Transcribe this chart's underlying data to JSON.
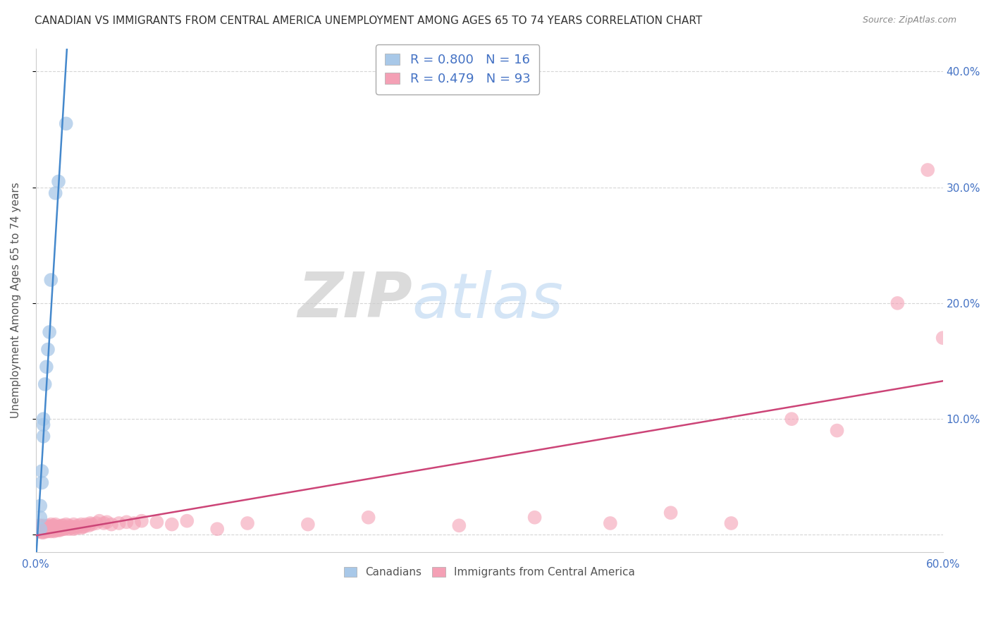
{
  "title": "CANADIAN VS IMMIGRANTS FROM CENTRAL AMERICA UNEMPLOYMENT AMONG AGES 65 TO 74 YEARS CORRELATION CHART",
  "source": "Source: ZipAtlas.com",
  "ylabel": "Unemployment Among Ages 65 to 74 years",
  "xlim": [
    0.0,
    0.6
  ],
  "ylim": [
    -0.015,
    0.42
  ],
  "yticks": [
    0.0,
    0.1,
    0.2,
    0.3,
    0.4
  ],
  "ytick_labels": [
    "",
    "10.0%",
    "20.0%",
    "30.0%",
    "40.0%"
  ],
  "xticks": [
    0.0,
    0.1,
    0.2,
    0.3,
    0.4,
    0.5,
    0.6
  ],
  "canadian_R": 0.8,
  "canadian_N": 16,
  "immigrant_R": 0.479,
  "immigrant_N": 93,
  "canadian_color": "#a8c8e8",
  "immigrant_color": "#f4a0b5",
  "canadian_line_color": "#4488cc",
  "immigrant_line_color": "#cc4477",
  "background_color": "#ffffff",
  "grid_color": "#cccccc",
  "watermark_zip": "ZIP",
  "watermark_atlas": "atlas",
  "canadian_x": [
    0.003,
    0.003,
    0.003,
    0.004,
    0.004,
    0.005,
    0.005,
    0.005,
    0.006,
    0.007,
    0.008,
    0.009,
    0.01,
    0.013,
    0.015,
    0.02
  ],
  "canadian_y": [
    0.005,
    0.015,
    0.025,
    0.045,
    0.055,
    0.085,
    0.095,
    0.1,
    0.13,
    0.145,
    0.16,
    0.175,
    0.22,
    0.295,
    0.305,
    0.355
  ],
  "immigrant_x": [
    0.001,
    0.002,
    0.002,
    0.003,
    0.003,
    0.003,
    0.004,
    0.004,
    0.004,
    0.005,
    0.005,
    0.005,
    0.005,
    0.006,
    0.006,
    0.006,
    0.007,
    0.007,
    0.007,
    0.008,
    0.008,
    0.008,
    0.009,
    0.009,
    0.01,
    0.01,
    0.01,
    0.01,
    0.011,
    0.011,
    0.012,
    0.012,
    0.012,
    0.013,
    0.013,
    0.013,
    0.014,
    0.014,
    0.015,
    0.015,
    0.016,
    0.016,
    0.017,
    0.017,
    0.018,
    0.018,
    0.019,
    0.02,
    0.02,
    0.021,
    0.022,
    0.022,
    0.023,
    0.024,
    0.025,
    0.025,
    0.026,
    0.027,
    0.028,
    0.03,
    0.03,
    0.031,
    0.032,
    0.033,
    0.035,
    0.036,
    0.037,
    0.04,
    0.042,
    0.045,
    0.047,
    0.05,
    0.055,
    0.06,
    0.065,
    0.07,
    0.08,
    0.09,
    0.1,
    0.12,
    0.14,
    0.18,
    0.22,
    0.28,
    0.33,
    0.38,
    0.42,
    0.46,
    0.5,
    0.53,
    0.57,
    0.59,
    0.6
  ],
  "immigrant_y": [
    0.005,
    0.003,
    0.008,
    0.003,
    0.005,
    0.008,
    0.002,
    0.005,
    0.007,
    0.002,
    0.004,
    0.006,
    0.008,
    0.003,
    0.005,
    0.007,
    0.003,
    0.005,
    0.007,
    0.003,
    0.006,
    0.008,
    0.004,
    0.007,
    0.003,
    0.005,
    0.007,
    0.009,
    0.004,
    0.007,
    0.003,
    0.006,
    0.008,
    0.004,
    0.006,
    0.009,
    0.004,
    0.007,
    0.004,
    0.007,
    0.004,
    0.007,
    0.005,
    0.008,
    0.005,
    0.008,
    0.005,
    0.006,
    0.009,
    0.006,
    0.005,
    0.008,
    0.007,
    0.006,
    0.005,
    0.009,
    0.007,
    0.006,
    0.008,
    0.006,
    0.009,
    0.007,
    0.007,
    0.009,
    0.008,
    0.01,
    0.009,
    0.01,
    0.012,
    0.01,
    0.011,
    0.009,
    0.01,
    0.011,
    0.01,
    0.012,
    0.011,
    0.009,
    0.012,
    0.005,
    0.01,
    0.009,
    0.015,
    0.008,
    0.015,
    0.01,
    0.019,
    0.01,
    0.1,
    0.09,
    0.2,
    0.315,
    0.17
  ]
}
